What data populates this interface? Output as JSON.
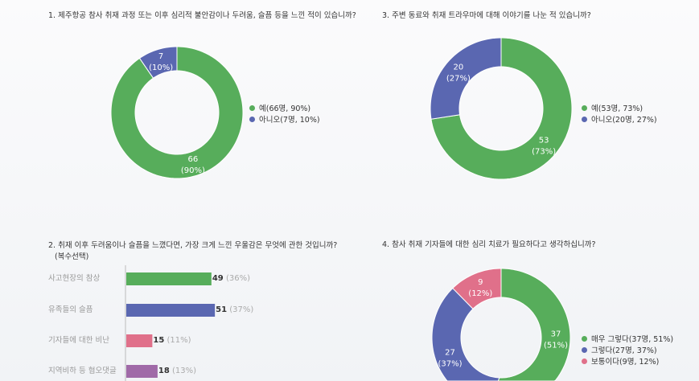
{
  "chart_data": [
    {
      "type": "pie",
      "donut": true,
      "title": "1. 제주항공 참사 취재 과정 또는 이후 심리적 불안감이나 두려움, 슬픔 등을 느낀 적이 있습니까?",
      "slices": [
        {
          "label": "예(66명, 90%)",
          "value": 66,
          "pct": "90%",
          "color": "#57ad5b"
        },
        {
          "label": "아니오(7명, 10%)",
          "value": 7,
          "pct": "10%",
          "color": "#5a67b1"
        }
      ],
      "legend": "right"
    },
    {
      "type": "pie",
      "donut": true,
      "title": "3. 주변 동료와 취재 트라우마에 대해 이야기를 나눈 적 있습니까?",
      "slices": [
        {
          "label": "예(53명, 73%)",
          "value": 53,
          "pct": "73%",
          "color": "#57ad5b"
        },
        {
          "label": "아니오(20명, 27%)",
          "value": 20,
          "pct": "27%",
          "color": "#5a67b1"
        }
      ],
      "legend": "right"
    },
    {
      "type": "bar",
      "orientation": "horizontal",
      "title": "2. 취재 이후 두려움이나 슬픔을 느꼈다면, 가장 크게 느낀 우울감은 무엇에 관한 것입니까?",
      "subtitle": "(복수선택)",
      "categories": [
        "사고현장의 참상",
        "유족들의 슬픔",
        "기자들에 대한 비난",
        "지역비하 등 혐오댓글"
      ],
      "values": [
        49,
        51,
        15,
        18
      ],
      "pcts": [
        "(36%)",
        "(37%)",
        "(11%)",
        "(13%)"
      ],
      "colors": [
        "#57ad5b",
        "#5a67b1",
        "#e0708a",
        "#a06aa8"
      ]
    },
    {
      "type": "pie",
      "donut": true,
      "title": "4. 참사 취재 기자들에 대한 심리 치료가 필요하다고 생각하십니까?",
      "slices": [
        {
          "label": "매우 그렇다(37명, 51%)",
          "value": 37,
          "pct": "51%",
          "color": "#57ad5b"
        },
        {
          "label": "그렇다(27명, 37%)",
          "value": 27,
          "pct": "37%",
          "color": "#5a67b1"
        },
        {
          "label": "보통이다(9명, 12%)",
          "value": 9,
          "pct": "12%",
          "color": "#e0708a"
        }
      ],
      "legend": "right"
    }
  ]
}
